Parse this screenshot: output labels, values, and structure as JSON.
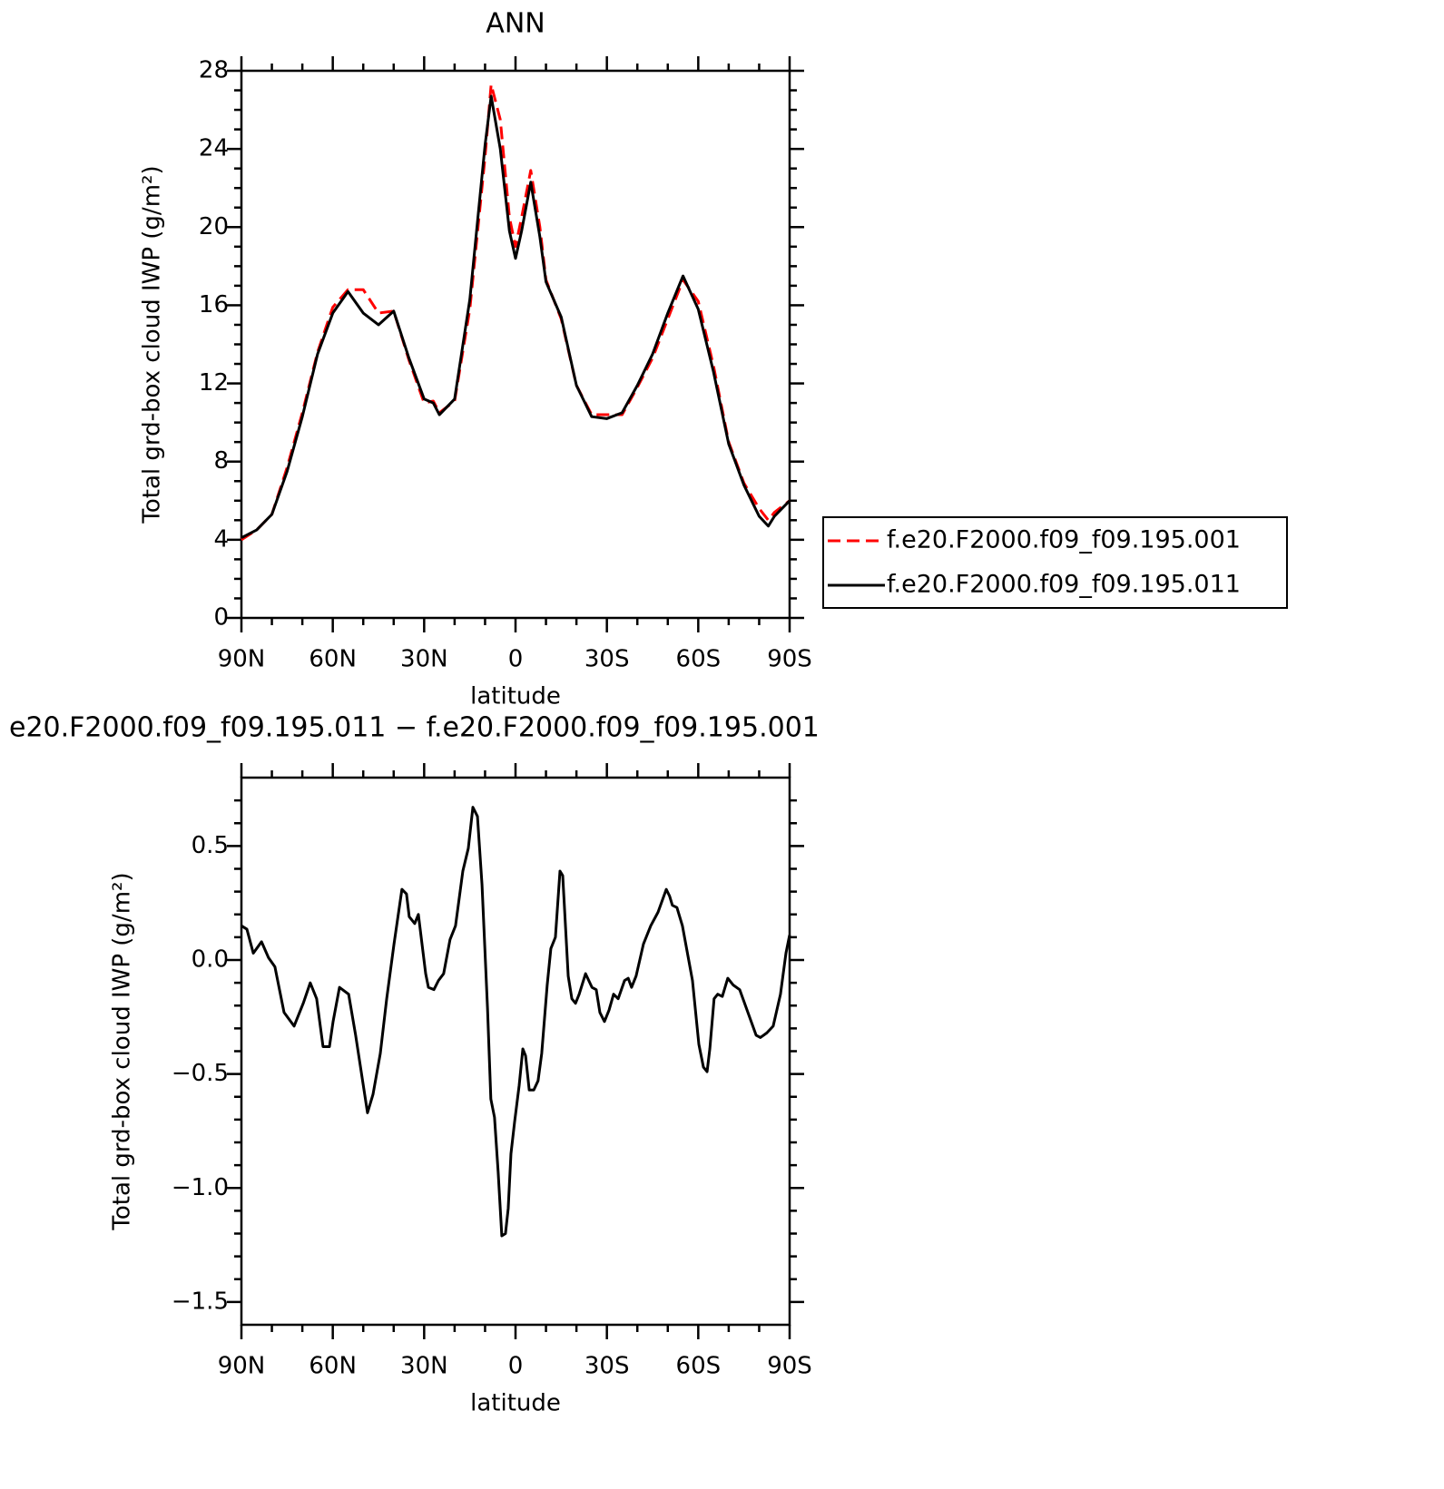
{
  "chart_data": [
    {
      "type": "line",
      "title": "ANN",
      "xlabel": "latitude",
      "ylabel": "Total grd-box cloud IWP (g/m²)",
      "x": [
        90,
        85,
        80,
        75,
        70,
        65,
        60,
        55,
        50,
        45,
        40,
        35,
        30,
        27,
        25,
        20,
        15,
        10,
        8,
        5,
        2,
        0,
        -2,
        -5,
        -8,
        -10,
        -15,
        -20,
        -25,
        -30,
        -35,
        -40,
        -45,
        -50,
        -55,
        -60,
        -65,
        -70,
        -75,
        -80,
        -83,
        -85,
        -90
      ],
      "series": [
        {
          "name": "f.e20.F2000.f09_f09.195.001",
          "color": "#ff0000",
          "linestyle": "dashed",
          "values": [
            4.0,
            4.5,
            5.3,
            7.7,
            10.5,
            13.6,
            15.9,
            16.8,
            16.8,
            15.6,
            15.7,
            13.2,
            11.0,
            11.1,
            10.5,
            11.1,
            15.8,
            23.6,
            27.3,
            25.5,
            20.5,
            19.0,
            20.5,
            22.9,
            20.0,
            17.3,
            15.3,
            11.9,
            10.4,
            10.4,
            10.4,
            11.8,
            13.3,
            15.3,
            17.3,
            16.2,
            12.9,
            9.0,
            6.9,
            5.6,
            5.0,
            5.4,
            6.0
          ]
        },
        {
          "name": "f.e20.F2000.f09_f09.195.011",
          "color": "#000000",
          "linestyle": "solid",
          "values": [
            4.1,
            4.5,
            5.3,
            7.5,
            10.3,
            13.5,
            15.6,
            16.7,
            15.6,
            15.0,
            15.7,
            13.3,
            11.2,
            11.0,
            10.4,
            11.2,
            16.3,
            24.2,
            26.7,
            24.0,
            19.8,
            18.4,
            19.8,
            22.3,
            19.5,
            17.2,
            15.4,
            11.9,
            10.3,
            10.2,
            10.5,
            11.9,
            13.5,
            15.6,
            17.5,
            15.8,
            12.6,
            8.9,
            6.8,
            5.2,
            4.7,
            5.2,
            6.0
          ]
        }
      ],
      "xlim": [
        90,
        -90
      ],
      "xticks": [
        {
          "value": 90,
          "label": "90N"
        },
        {
          "value": 60,
          "label": "60N"
        },
        {
          "value": 30,
          "label": "30N"
        },
        0,
        {
          "value": -30,
          "label": "30S"
        },
        {
          "value": -60,
          "label": "60S"
        },
        {
          "value": -90,
          "label": "90S"
        }
      ],
      "x_minor_ticks": [
        80,
        70,
        50,
        40,
        20,
        10,
        -10,
        -20,
        -40,
        -50,
        -70,
        -80
      ],
      "ylim": [
        0,
        28
      ],
      "yticks": [
        0,
        4,
        8,
        12,
        16,
        20,
        24,
        28
      ],
      "y_minor_ticks": [
        1,
        2,
        3,
        5,
        6,
        7,
        9,
        10,
        11,
        13,
        14,
        15,
        17,
        18,
        19,
        21,
        22,
        23,
        25,
        26,
        27
      ],
      "legend": "right"
    },
    {
      "type": "line",
      "title": "e20.F2000.f09_f09.195.011 − f.e20.F2000.f09_f09.195.001",
      "xlabel": "latitude",
      "ylabel": "Total grd-box cloud IWP (g/m²)",
      "x": [
        90,
        88.2,
        86.1,
        83.4,
        81.1,
        79,
        76,
        72.7,
        69.7,
        67.4,
        65.3,
        63.2,
        61.1,
        59.9,
        57.8,
        54.8,
        52.5,
        48.6,
        46.8,
        44.4,
        42.3,
        39.9,
        37.3,
        35.8,
        34.9,
        33.1,
        31.9,
        29.5,
        28.6,
        26.8,
        25.3,
        23.6,
        21.5,
        19.7,
        17.3,
        15.5,
        14.0,
        12.5,
        11.0,
        9.2,
        8.1,
        6.9,
        5.7,
        4.5,
        3.3,
        2.4,
        1.5,
        0.3,
        -1.2,
        -2.4,
        -3.3,
        -4.5,
        -6.0,
        -7.4,
        -8.6,
        -10.4,
        -11.6,
        -13.1,
        -14.6,
        -15.5,
        -17.3,
        -18.5,
        -19.7,
        -20.9,
        -23.0,
        -25.1,
        -26.5,
        -27.7,
        -29.2,
        -30.7,
        -32.2,
        -33.7,
        -35.8,
        -37.0,
        -38.1,
        -39.6,
        -42.0,
        -44.4,
        -46.8,
        -49.5,
        -50.6,
        -51.5,
        -53.0,
        -54.8,
        -58.1,
        -60.2,
        -61.7,
        -62.9,
        -63.8,
        -65.2,
        -66.4,
        -67.9,
        -69.7,
        -71.5,
        -73.6,
        -76.3,
        -79.0,
        -80.4,
        -82.5,
        -84.6,
        -87.0,
        -88.8,
        -90
      ],
      "series": [
        {
          "color": "#000000",
          "linestyle": "solid",
          "values": [
            0.15,
            0.135,
            0.03,
            0.08,
            0.01,
            -0.03,
            -0.23,
            -0.29,
            -0.19,
            -0.1,
            -0.17,
            -0.38,
            -0.38,
            -0.27,
            -0.12,
            -0.15,
            -0.33,
            -0.67,
            -0.59,
            -0.41,
            -0.17,
            0.07,
            0.31,
            0.29,
            0.19,
            0.16,
            0.2,
            -0.06,
            -0.12,
            -0.13,
            -0.09,
            -0.06,
            0.09,
            0.15,
            0.39,
            0.49,
            0.67,
            0.63,
            0.33,
            -0.21,
            -0.61,
            -0.69,
            -0.93,
            -1.21,
            -1.2,
            -1.09,
            -0.85,
            -0.71,
            -0.55,
            -0.39,
            -0.42,
            -0.57,
            -0.57,
            -0.53,
            -0.41,
            -0.11,
            0.05,
            0.1,
            0.39,
            0.37,
            -0.07,
            -0.17,
            -0.19,
            -0.15,
            -0.06,
            -0.12,
            -0.13,
            -0.23,
            -0.27,
            -0.22,
            -0.15,
            -0.17,
            -0.09,
            -0.08,
            -0.12,
            -0.07,
            0.07,
            0.15,
            0.21,
            0.31,
            0.28,
            0.24,
            0.23,
            0.15,
            -0.09,
            -0.37,
            -0.47,
            -0.49,
            -0.39,
            -0.17,
            -0.15,
            -0.16,
            -0.08,
            -0.11,
            -0.13,
            -0.23,
            -0.33,
            -0.34,
            -0.32,
            -0.29,
            -0.15,
            0.03,
            0.11
          ]
        }
      ],
      "xlim": [
        90,
        -90
      ],
      "xticks": [
        {
          "value": 90,
          "label": "90N"
        },
        {
          "value": 60,
          "label": "60N"
        },
        {
          "value": 30,
          "label": "30N"
        },
        0,
        {
          "value": -30,
          "label": "30S"
        },
        {
          "value": -60,
          "label": "60S"
        },
        {
          "value": -90,
          "label": "90S"
        }
      ],
      "x_minor_ticks": [
        80,
        70,
        50,
        40,
        20,
        10,
        -10,
        -20,
        -40,
        -50,
        -70,
        -80
      ],
      "ylim": [
        -1.6,
        0.8
      ],
      "yticks": [
        {
          "value": -1.5,
          "label": "−1.5"
        },
        {
          "value": -1.0,
          "label": "−1.0"
        },
        {
          "value": -0.5,
          "label": "−0.5"
        },
        {
          "value": 0.0,
          "label": "0.0"
        },
        {
          "value": 0.5,
          "label": "0.5"
        }
      ],
      "y_minor_ticks": [
        -1.4,
        -1.3,
        -1.2,
        -1.1,
        -0.9,
        -0.8,
        -0.7,
        -0.6,
        -0.4,
        -0.3,
        -0.2,
        -0.1,
        0.1,
        0.2,
        0.3,
        0.4,
        0.6,
        0.7
      ]
    }
  ]
}
